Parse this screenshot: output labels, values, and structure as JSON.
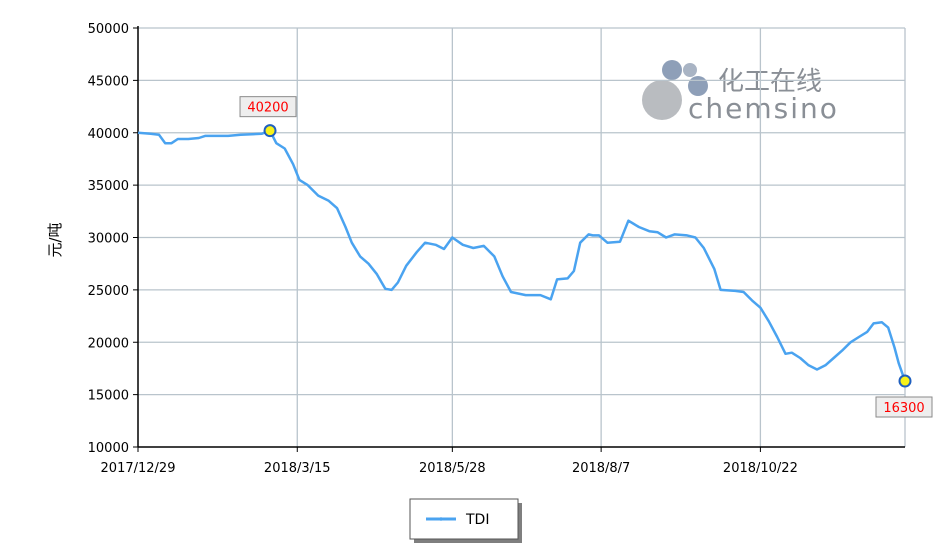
{
  "chart_data": {
    "type": "line",
    "ylabel": "元/吨",
    "ylim": [
      10000,
      50000
    ],
    "yticks": [
      "50000",
      "45000",
      "40000",
      "35000",
      "30000",
      "25000",
      "20000",
      "15000",
      "10000"
    ],
    "x_range": [
      "2017/12/29",
      "2018/12/30"
    ],
    "xticks": [
      "2017/12/29",
      "2018/3/15",
      "2018/5/28",
      "2018/8/7",
      "2018/10/22"
    ],
    "grid": true,
    "legend_position": "bottom-center",
    "series": [
      {
        "name": "TDI",
        "color": "#4aa3f0",
        "points": [
          [
            "2017/12/29",
            40000
          ],
          [
            "2018/1/4",
            39900
          ],
          [
            "2018/1/8",
            39800
          ],
          [
            "2018/1/11",
            39000
          ],
          [
            "2018/1/14",
            39000
          ],
          [
            "2018/1/17",
            39400
          ],
          [
            "2018/1/22",
            39400
          ],
          [
            "2018/1/27",
            39500
          ],
          [
            "2018/1/30",
            39700
          ],
          [
            "2018/2/10",
            39700
          ],
          [
            "2018/2/16",
            39800
          ],
          [
            "2018/2/26",
            39900
          ],
          [
            "2018/3/2",
            40200
          ],
          [
            "2018/3/5",
            39000
          ],
          [
            "2018/3/9",
            38500
          ],
          [
            "2018/3/13",
            37000
          ],
          [
            "2018/3/16",
            35500
          ],
          [
            "2018/3/20",
            35000
          ],
          [
            "2018/3/25",
            34000
          ],
          [
            "2018/3/30",
            33500
          ],
          [
            "2018/4/3",
            32800
          ],
          [
            "2018/4/7",
            31000
          ],
          [
            "2018/4/10",
            29500
          ],
          [
            "2018/4/14",
            28200
          ],
          [
            "2018/4/18",
            27500
          ],
          [
            "2018/4/22",
            26500
          ],
          [
            "2018/4/26",
            25100
          ],
          [
            "2018/4/29",
            25000
          ],
          [
            "2018/5/2",
            25700
          ],
          [
            "2018/5/6",
            27300
          ],
          [
            "2018/5/11",
            28600
          ],
          [
            "2018/5/15",
            29500
          ],
          [
            "2018/5/20",
            29300
          ],
          [
            "2018/5/24",
            28900
          ],
          [
            "2018/5/28",
            30000
          ],
          [
            "2018/6/2",
            29300
          ],
          [
            "2018/6/7",
            29000
          ],
          [
            "2018/6/12",
            29200
          ],
          [
            "2018/6/17",
            28200
          ],
          [
            "2018/6/21",
            26300
          ],
          [
            "2018/6/25",
            24800
          ],
          [
            "2018/7/2",
            24500
          ],
          [
            "2018/7/9",
            24500
          ],
          [
            "2018/7/14",
            24100
          ],
          [
            "2018/7/17",
            26000
          ],
          [
            "2018/7/22",
            26100
          ],
          [
            "2018/7/25",
            26800
          ],
          [
            "2018/7/28",
            29500
          ],
          [
            "2018/8/1",
            30300
          ],
          [
            "2018/8/3",
            30200
          ],
          [
            "2018/8/6",
            30200
          ],
          [
            "2018/8/10",
            29500
          ],
          [
            "2018/8/16",
            29600
          ],
          [
            "2018/8/20",
            31600
          ],
          [
            "2018/8/25",
            31000
          ],
          [
            "2018/8/30",
            30600
          ],
          [
            "2018/9/3",
            30500
          ],
          [
            "2018/9/7",
            30000
          ],
          [
            "2018/9/11",
            30300
          ],
          [
            "2018/9/17",
            30200
          ],
          [
            "2018/9/21",
            30000
          ],
          [
            "2018/9/25",
            29000
          ],
          [
            "2018/9/30",
            27000
          ],
          [
            "2018/10/3",
            25000
          ],
          [
            "2018/10/10",
            24900
          ],
          [
            "2018/10/14",
            24800
          ],
          [
            "2018/10/18",
            24000
          ],
          [
            "2018/10/22",
            23300
          ],
          [
            "2018/10/26",
            22000
          ],
          [
            "2018/10/30",
            20500
          ],
          [
            "2018/11/3",
            18900
          ],
          [
            "2018/11/6",
            19000
          ],
          [
            "2018/11/10",
            18500
          ],
          [
            "2018/11/14",
            17800
          ],
          [
            "2018/11/18",
            17400
          ],
          [
            "2018/11/22",
            17800
          ],
          [
            "2018/11/26",
            18500
          ],
          [
            "2018/11/30",
            19200
          ],
          [
            "2018/12/4",
            20000
          ],
          [
            "2018/12/8",
            20500
          ],
          [
            "2018/12/12",
            21000
          ],
          [
            "2018/12/15",
            21800
          ],
          [
            "2018/12/19",
            21900
          ],
          [
            "2018/12/22",
            21400
          ],
          [
            "2018/12/25",
            19500
          ],
          [
            "2018/12/27",
            18000
          ],
          [
            "2018/12/30",
            16300
          ]
        ]
      }
    ],
    "annotations": [
      {
        "label": "40200",
        "date": "2018/3/2",
        "value": 40200
      },
      {
        "label": "16300",
        "date": "2018/12/30",
        "value": 16300
      }
    ],
    "watermark": {
      "cn": "化工在线",
      "en": "chemsino"
    }
  }
}
